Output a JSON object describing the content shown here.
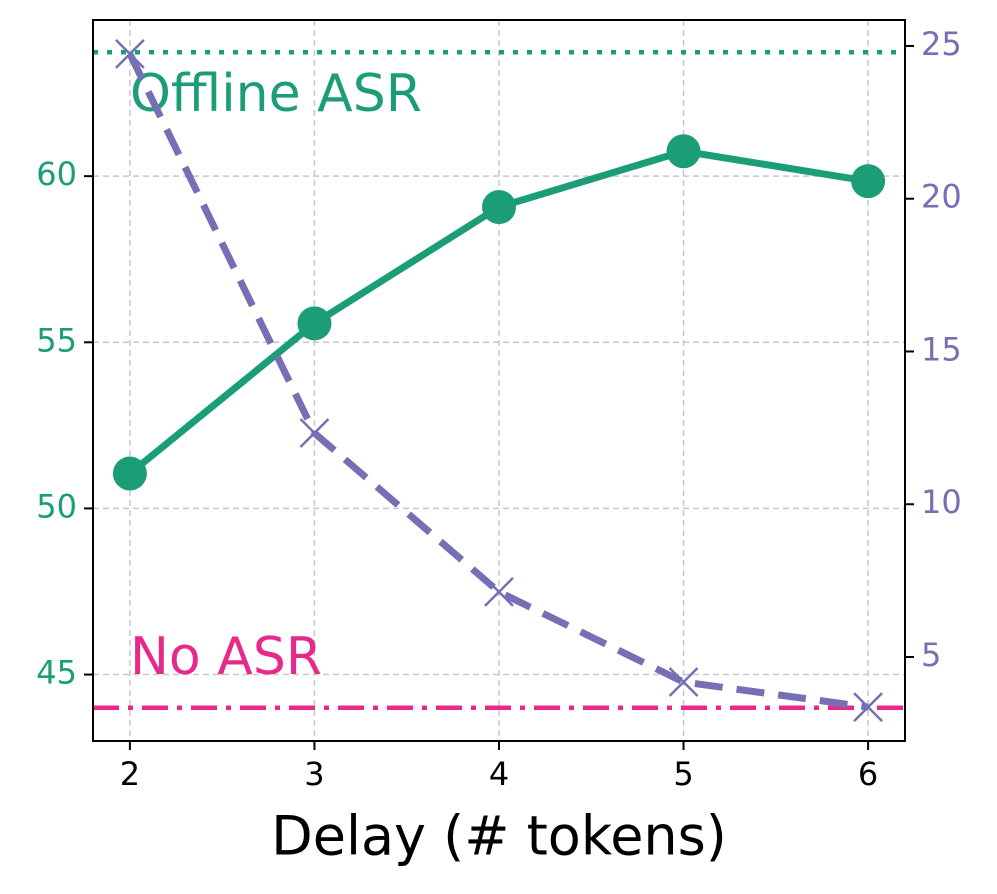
{
  "chart_data": {
    "type": "line",
    "xlabel": "Delay (# tokens)",
    "x": [
      2,
      3,
      4,
      5,
      6
    ],
    "xlim": [
      1.8,
      6.2
    ],
    "xticks": [
      2,
      3,
      4,
      5,
      6
    ],
    "ylim": [
      43,
      64.7
    ],
    "yticks": [
      45,
      50,
      55,
      60
    ],
    "ycolor": "#1b9e77",
    "y2lim": [
      2.25,
      25.85
    ],
    "y2ticks": [
      5,
      10,
      15,
      20,
      25
    ],
    "y2color": "#7570b3",
    "grid": true,
    "series": [
      {
        "color": "#1b9e77",
        "values": [
          51.05,
          55.57,
          59.07,
          60.75,
          59.85
        ],
        "marker": "circle",
        "linestyle": "solid"
      },
      {
        "color": "#7570b3",
        "values": [
          24.74,
          12.33,
          7.13,
          4.18,
          3.36
        ],
        "marker": "x",
        "linestyle": "dashed",
        "axis": "y2"
      }
    ],
    "hlines": [
      {
        "label": "Offline ASR",
        "value": 63.73,
        "color": "#1b9e77",
        "linestyle": "dotted"
      },
      {
        "label": "No ASR",
        "value": 44.0,
        "color": "#e7298a",
        "linestyle": "dashdot"
      }
    ]
  }
}
